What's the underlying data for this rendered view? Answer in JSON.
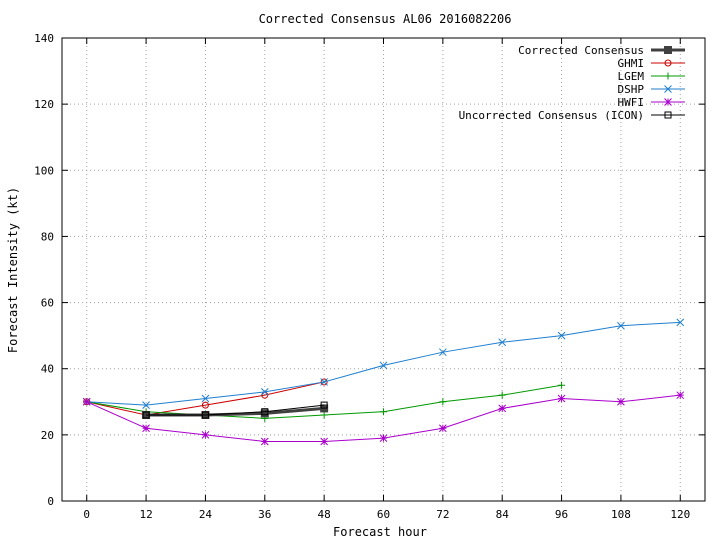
{
  "chart_data": {
    "type": "line",
    "title": "Corrected Consensus  AL06 2016082206",
    "xlabel": "Forecast hour",
    "ylabel": "Forecast Intensity (kt)",
    "xlim": [
      -5,
      125
    ],
    "ylim": [
      0,
      140
    ],
    "xticks": [
      0,
      12,
      24,
      36,
      48,
      60,
      72,
      84,
      96,
      108,
      120
    ],
    "yticks": [
      0,
      20,
      40,
      60,
      80,
      100,
      120,
      140
    ],
    "grid": true,
    "legend_position": "top-right",
    "series": [
      {
        "name": "Corrected Consensus",
        "color": "#404040",
        "marker": "filled-square",
        "x": [
          12,
          24,
          36,
          48
        ],
        "y": [
          26,
          26,
          26.5,
          28
        ]
      },
      {
        "name": "GHMI",
        "color": "#cc0000",
        "marker": "circle",
        "x": [
          0,
          12,
          24,
          36,
          48
        ],
        "y": [
          30,
          26,
          29,
          32,
          36
        ]
      },
      {
        "name": "LGEM",
        "color": "#009900",
        "marker": "plus",
        "x": [
          0,
          12,
          24,
          36,
          48,
          60,
          72,
          84,
          96
        ],
        "y": [
          30,
          27,
          26,
          25,
          26,
          27,
          30,
          32,
          35
        ]
      },
      {
        "name": "DSHP",
        "color": "#1f7fcf",
        "marker": "x",
        "x": [
          0,
          12,
          24,
          36,
          48,
          60,
          72,
          84,
          96,
          108,
          120
        ],
        "y": [
          30,
          29,
          31,
          33,
          36,
          41,
          45,
          48,
          50,
          53,
          54
        ]
      },
      {
        "name": "HWFI",
        "color": "#aa00cc",
        "marker": "star",
        "x": [
          0,
          12,
          24,
          36,
          48,
          60,
          72,
          84,
          96,
          108,
          120
        ],
        "y": [
          30,
          22,
          20,
          18,
          18,
          19,
          22,
          28,
          31,
          30,
          32
        ]
      },
      {
        "name": "Uncorrected Consensus (ICON)",
        "color": "#000000",
        "marker": "open-square",
        "x": [
          12,
          24,
          36,
          48
        ],
        "y": [
          26,
          26,
          27,
          29
        ]
      }
    ]
  }
}
